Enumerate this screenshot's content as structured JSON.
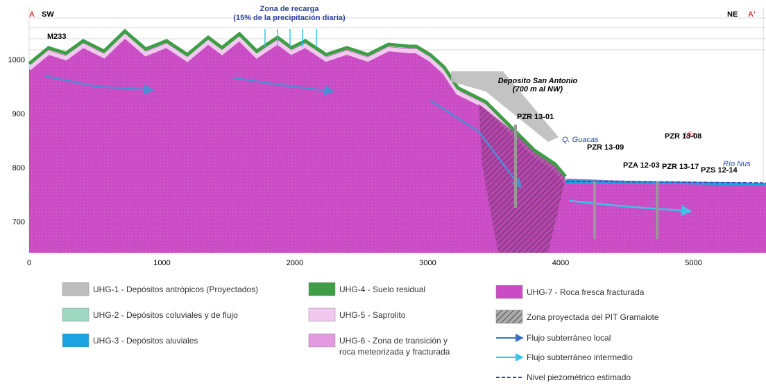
{
  "section": {
    "start_letter": "A",
    "start_dir": "SW",
    "end_dir": "NE",
    "end_letter": "A'"
  },
  "axes": {
    "x_ticks": [
      0,
      1000,
      2000,
      3000,
      4000,
      5000
    ],
    "y_ticks": [
      700,
      800,
      900,
      1000
    ]
  },
  "annotations": {
    "recharge_title": "Zona de recarga",
    "recharge_sub": "(15% de la precipitación diaria)",
    "well": "M233",
    "deposit_title": "Deposito San Antonio",
    "deposit_sub": "(700 m al NW)",
    "creek": "Q. Guacas",
    "road": "Vía",
    "river": "Río Nus",
    "piezometers": [
      "PZR 13-01",
      "PZR 13-09",
      "PZA 12-03",
      "PZR 13-08",
      "PZR 13-17",
      "PZS 12-14"
    ]
  },
  "legend": [
    {
      "label": "UHG-1 - Depósitos antrópicos  (Proyectados)",
      "color": "#bdbdbd"
    },
    {
      "label": "UHG-2 - Depósitos coluviales y de flujo",
      "color": "#9fd8c2"
    },
    {
      "label": "UHG-3 - Depósitos aluviales",
      "color": "#1aa3e0"
    },
    {
      "label": "UHG-4 - Suelo residual",
      "color": "#3e9e45"
    },
    {
      "label": "UHG-5 - Saprolito",
      "color": "#f1c9ee"
    },
    {
      "label": "UHG-6 - Zona de transición y",
      "label2": "roca meteorizada y fracturada",
      "color": "#e49ae0"
    },
    {
      "label": "UHG-7 - Roca fresca fracturada",
      "color": "#c94cc4"
    },
    {
      "label": "Zona proyectada del PIT Gramalote",
      "color": "#777777"
    },
    {
      "label": "Flujo subterráneo local",
      "color": "#3b6fc4"
    },
    {
      "label": "Flujo subterráneo intermedio",
      "color": "#35c6e8"
    },
    {
      "label": "Nivel piezométrico estimado",
      "color": "#3b3bb0"
    }
  ]
}
